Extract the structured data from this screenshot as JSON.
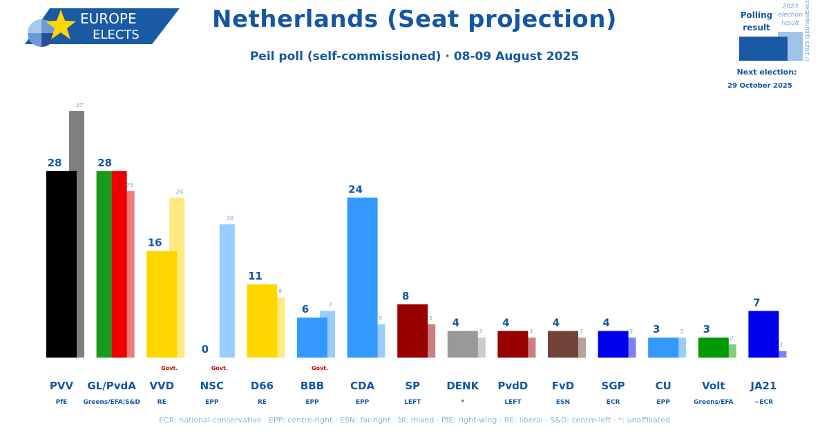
{
  "logo": {
    "line1": "EUROPE",
    "line2": "ELECTS"
  },
  "header": {
    "title": "Netherlands (Seat projection)",
    "subtitle": "Peil poll (self-commissioned) · 08-09 August 2025"
  },
  "legend": {
    "polling_label_1": "Polling",
    "polling_label_2": "result",
    "election_label_1": "2023",
    "election_label_2": "election",
    "election_label_3": "result",
    "copyright": "© 2025 @EuropeElects",
    "next_election_label": "Next election:",
    "next_election_date": "29 October 2025",
    "colors": {
      "polling": "#1a5aa5",
      "election": "#9ec4e8"
    }
  },
  "chart_data": {
    "type": "bar",
    "ylim": [
      0,
      40
    ],
    "govt_label": "Govt.",
    "parties": [
      {
        "name": "PVV",
        "group": "PfE",
        "poll": 28,
        "prev": 37,
        "color": "#000000",
        "prev_color": "#7f7f7f",
        "govt": false
      },
      {
        "name": "GL/PvdA",
        "group": "Greens/EFA|S&D",
        "poll": 28,
        "prev": 25,
        "colors": [
          "#1a9a1a",
          "#ee0000"
        ],
        "prev_color": "#ef7a7a",
        "govt": false
      },
      {
        "name": "VVD",
        "group": "RE",
        "poll": 16,
        "prev": 24,
        "color": "#ffd700",
        "prev_color": "#ffe980",
        "govt": true
      },
      {
        "name": "NSC",
        "group": "EPP",
        "poll": 0,
        "prev": 20,
        "color": "#3399ff",
        "prev_color": "#99ccff",
        "govt": true
      },
      {
        "name": "D66",
        "group": "RE",
        "poll": 11,
        "prev": 9,
        "color": "#ffd700",
        "prev_color": "#ffe980",
        "govt": false
      },
      {
        "name": "BBB",
        "group": "EPP",
        "poll": 6,
        "prev": 7,
        "color": "#3399ff",
        "prev_color": "#99ccff",
        "govt": true
      },
      {
        "name": "CDA",
        "group": "EPP",
        "poll": 24,
        "prev": 5,
        "color": "#3399ff",
        "prev_color": "#99ccff",
        "govt": false
      },
      {
        "name": "SP",
        "group": "LEFT",
        "poll": 8,
        "prev": 5,
        "color": "#990000",
        "prev_color": "#cc7f7f",
        "govt": false
      },
      {
        "name": "DENK",
        "group": "*",
        "poll": 4,
        "prev": 3,
        "color": "#999999",
        "prev_color": "#cccccc",
        "govt": false
      },
      {
        "name": "PvdD",
        "group": "LEFT",
        "poll": 4,
        "prev": 3,
        "color": "#990000",
        "prev_color": "#cc7f7f",
        "govt": false
      },
      {
        "name": "FvD",
        "group": "ESN",
        "poll": 4,
        "prev": 3,
        "color": "#704238",
        "prev_color": "#b8a09b",
        "govt": false
      },
      {
        "name": "SGP",
        "group": "ECR",
        "poll": 4,
        "prev": 3,
        "color": "#0000ee",
        "prev_color": "#7f7ff5",
        "govt": false
      },
      {
        "name": "CU",
        "group": "EPP",
        "poll": 3,
        "prev": 3,
        "color": "#3399ff",
        "prev_color": "#99ccff",
        "govt": false
      },
      {
        "name": "Volt",
        "group": "Greens/EFA",
        "poll": 3,
        "prev": 2,
        "color": "#009900",
        "prev_color": "#7fcc7f",
        "govt": false
      },
      {
        "name": "JA21",
        "group": "~ECR",
        "poll": 7,
        "prev": 1,
        "color": "#0000ee",
        "prev_color": "#7f7ff5",
        "govt": false
      }
    ]
  },
  "footer": {
    "text": "ECR: national-conservative · EPP: centre-right · ESN: far-right · NI: mixed · PfE: right-wing · RE: liberal · S&D: centre-left · *: unaffiliated"
  }
}
